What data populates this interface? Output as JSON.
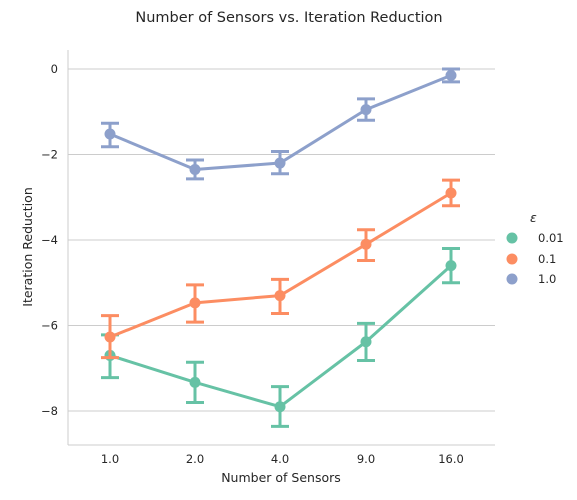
{
  "chart_data": {
    "type": "line",
    "title": "Number of Sensors vs. Iteration Reduction",
    "xlabel": "Number of Sensors",
    "ylabel": "Iteration Reduction",
    "categories": [
      "1.0",
      "2.0",
      "4.0",
      "9.0",
      "16.0"
    ],
    "ylim": [
      -8.8,
      0.45
    ],
    "yticks": [
      0,
      -2,
      -4,
      -6,
      -8
    ],
    "ytick_labels": [
      "0",
      "−2",
      "−4",
      "−6",
      "−8"
    ],
    "grid": "horizontal",
    "legend": {
      "title": "ε",
      "placement": "right"
    },
    "series": [
      {
        "name": "0.01",
        "color": "#66c2a5",
        "values": [
          -6.7,
          -7.33,
          -7.9,
          -6.38,
          -4.6
        ],
        "lower": [
          -7.22,
          -7.8,
          -8.36,
          -6.82,
          -5.0
        ],
        "upper": [
          -6.22,
          -6.86,
          -7.43,
          -5.95,
          -4.2
        ]
      },
      {
        "name": "0.1",
        "color": "#fc8d62",
        "values": [
          -6.27,
          -5.47,
          -5.3,
          -4.1,
          -2.9
        ],
        "lower": [
          -6.75,
          -5.92,
          -5.72,
          -4.48,
          -3.2
        ],
        "upper": [
          -5.77,
          -5.05,
          -4.92,
          -3.76,
          -2.6
        ]
      },
      {
        "name": "1.0",
        "color": "#8da0cb",
        "values": [
          -1.52,
          -2.35,
          -2.2,
          -0.95,
          -0.15
        ],
        "lower": [
          -1.82,
          -2.57,
          -2.45,
          -1.2,
          -0.3
        ],
        "upper": [
          -1.27,
          -2.13,
          -1.93,
          -0.7,
          0.0
        ]
      }
    ]
  }
}
